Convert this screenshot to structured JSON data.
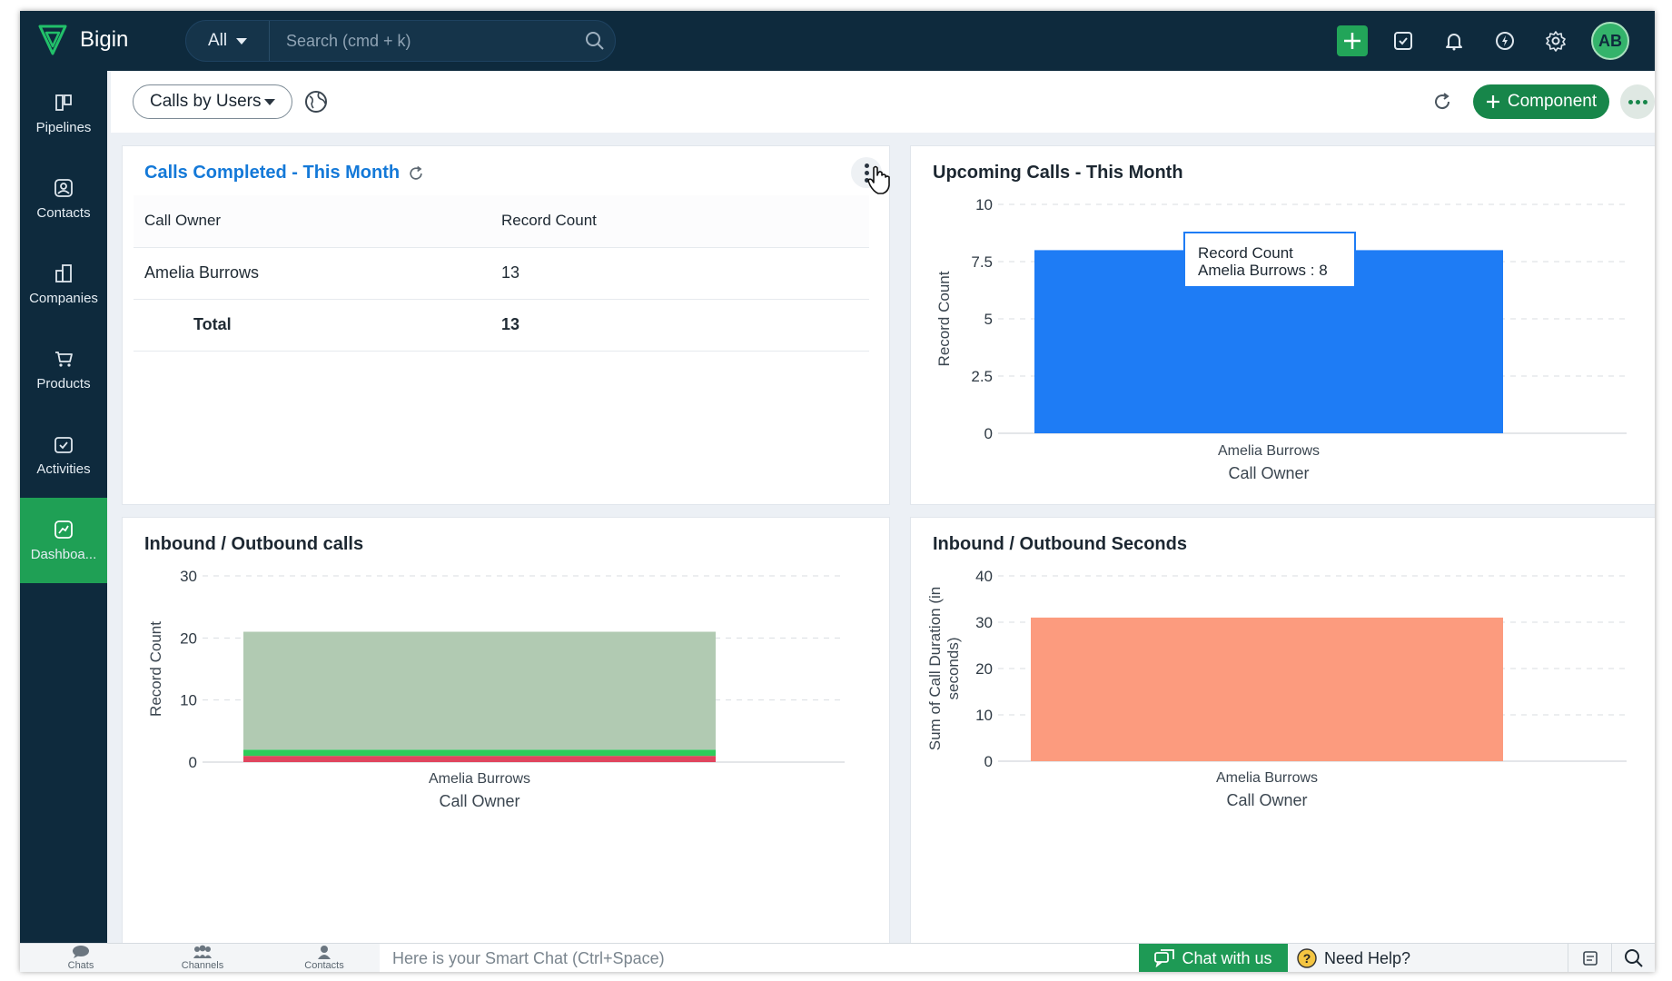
{
  "app": {
    "name": "Bigin",
    "avatar_initials": "AB"
  },
  "search": {
    "scope": "All",
    "placeholder": "Search (cmd + k)"
  },
  "sidebar": {
    "items": [
      {
        "label": "Pipelines",
        "icon": "pipelines-icon"
      },
      {
        "label": "Contacts",
        "icon": "contacts-icon"
      },
      {
        "label": "Companies",
        "icon": "companies-icon"
      },
      {
        "label": "Products",
        "icon": "products-icon"
      },
      {
        "label": "Activities",
        "icon": "activities-icon"
      },
      {
        "label": "Dashboa...",
        "icon": "dashboards-icon",
        "active": true
      }
    ]
  },
  "header": {
    "dashboard_select": "Calls by Users",
    "component_button": "Component"
  },
  "cards": {
    "calls_completed": {
      "title": "Calls Completed - This Month",
      "columns": [
        "Call Owner",
        "Record Count"
      ],
      "rows": [
        {
          "owner": "Amelia Burrows",
          "count": "13"
        }
      ],
      "total_label": "Total",
      "total_value": "13"
    },
    "upcoming": {
      "title": "Upcoming Calls - This Month",
      "tooltip_title": "Record Count",
      "tooltip_value": "Amelia Burrows : 8"
    },
    "inbound_calls": {
      "title": "Inbound / Outbound calls"
    },
    "inbound_seconds": {
      "title": "Inbound / Outbound Seconds"
    }
  },
  "chart_data": [
    {
      "type": "bar",
      "title": "Upcoming Calls - This Month",
      "categories": [
        "Amelia Burrows"
      ],
      "values": [
        8
      ],
      "ylim": [
        0,
        10
      ],
      "yticks": [
        "0",
        "2.5",
        "5",
        "7.5",
        "10"
      ],
      "xlabel": "Call Owner",
      "ylabel": "Record Count",
      "color": "#1e7cf5",
      "grid": true
    },
    {
      "type": "bar",
      "stacked": true,
      "title": "Inbound / Outbound calls",
      "categories": [
        "Amelia Burrows"
      ],
      "series": [
        {
          "values": [
            1
          ],
          "color": "#e0455e"
        },
        {
          "values": [
            1
          ],
          "color": "#2ecc5a"
        },
        {
          "values": [
            19
          ],
          "color": "#b1cab2"
        }
      ],
      "ylim": [
        0,
        30
      ],
      "yticks": [
        "0",
        "10",
        "20",
        "30"
      ],
      "xlabel": "Call Owner",
      "ylabel": "Record Count",
      "grid": true
    },
    {
      "type": "bar",
      "title": "Inbound / Outbound Seconds",
      "categories": [
        "Amelia Burrows"
      ],
      "values": [
        31
      ],
      "ylim": [
        0,
        40
      ],
      "yticks": [
        "0",
        "10",
        "20",
        "30",
        "40"
      ],
      "xlabel": "Call Owner",
      "ylabel": "Sum of Call Duration (in seconds)",
      "ylabel_lines": [
        "Sum of Call Duration (in",
        "seconds)"
      ],
      "color": "#fc9b7e",
      "grid": true
    }
  ],
  "bottombar": {
    "items": [
      "Chats",
      "Channels",
      "Contacts"
    ],
    "smart_chat_placeholder": "Here is your Smart Chat (Ctrl+Space)",
    "chat_button": "Chat with us",
    "help_button": "Need Help?"
  }
}
